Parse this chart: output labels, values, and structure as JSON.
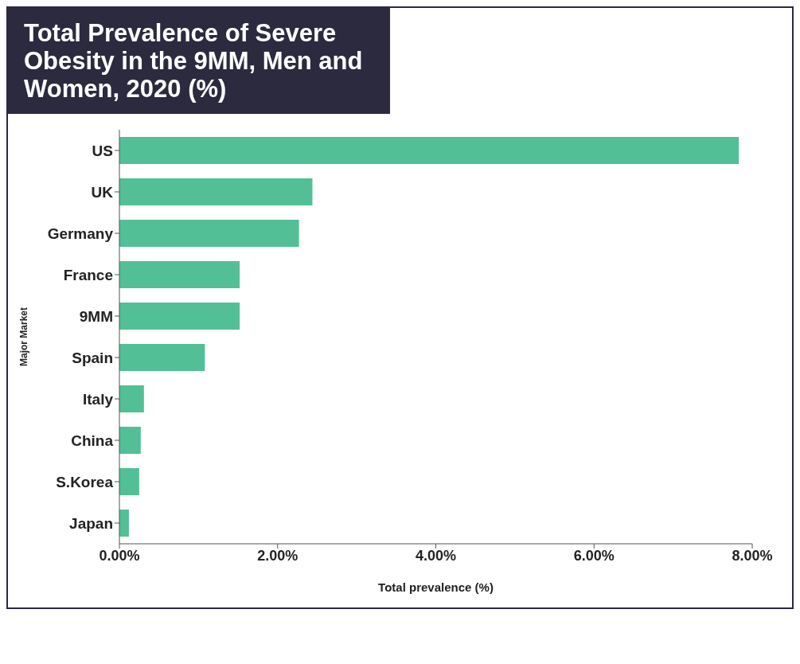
{
  "chart_data": {
    "type": "bar",
    "orientation": "horizontal",
    "title": "Total Prevalence of Severe Obesity in the 9MM, Men and Women, 2020 (%)",
    "xlabel": "Total prevalence (%)",
    "ylabel": "Major Market",
    "categories": [
      "US",
      "UK",
      "Germany",
      "France",
      "9MM",
      "Spain",
      "Italy",
      "China",
      "S.Korea",
      "Japan"
    ],
    "values": [
      7.83,
      2.44,
      2.27,
      1.52,
      1.52,
      1.08,
      0.31,
      0.27,
      0.25,
      0.12
    ],
    "color": "#52bf97",
    "xlim": [
      0,
      8
    ],
    "xticks": [
      {
        "value": 0,
        "label": "0.00%"
      },
      {
        "value": 2,
        "label": "2.00%"
      },
      {
        "value": 4,
        "label": "4.00%"
      },
      {
        "value": 6,
        "label": "6.00%"
      },
      {
        "value": 8,
        "label": "8.00%"
      }
    ],
    "grid": false,
    "legend": false
  }
}
